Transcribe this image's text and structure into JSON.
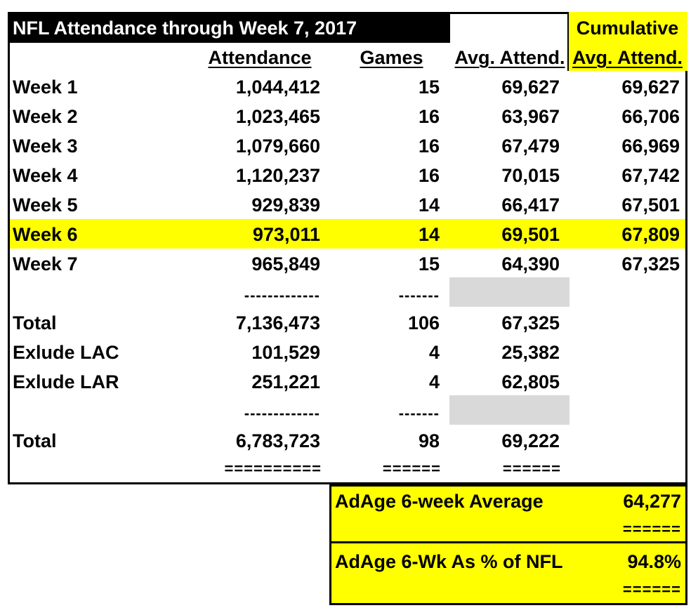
{
  "title": "NFL Attendance through Week 7, 2017",
  "headers": {
    "attendance": "Attendance",
    "games": "Games",
    "avg": "Avg. Attend.",
    "cum_line1": "Cumulative",
    "cum_line2": "Avg. Attend."
  },
  "rows": [
    {
      "label": "Week 1",
      "attendance": "1,044,412",
      "games": "15",
      "avg": "69,627",
      "cum": "69,627"
    },
    {
      "label": "Week 2",
      "attendance": "1,023,465",
      "games": "16",
      "avg": "63,967",
      "cum": "66,706"
    },
    {
      "label": "Week 3",
      "attendance": "1,079,660",
      "games": "16",
      "avg": "67,479",
      "cum": "66,969"
    },
    {
      "label": "Week 4",
      "attendance": "1,120,237",
      "games": "16",
      "avg": "70,015",
      "cum": "67,742"
    },
    {
      "label": "Week 5",
      "attendance": "929,839",
      "games": "14",
      "avg": "66,417",
      "cum": "67,501"
    },
    {
      "label": "Week 6",
      "attendance": "973,011",
      "games": "14",
      "avg": "69,501",
      "cum": "67,809"
    },
    {
      "label": "Week 7",
      "attendance": "965,849",
      "games": "15",
      "avg": "64,390",
      "cum": "67,325"
    }
  ],
  "separator1": {
    "attendance": "-------------",
    "games": "-------"
  },
  "total1": {
    "label": "Total",
    "attendance": "7,136,473",
    "games": "106",
    "avg": "67,325"
  },
  "exclude_lac": {
    "label": "Exlude LAC",
    "attendance": "101,529",
    "games": "4",
    "avg": "25,382"
  },
  "exclude_lar": {
    "label": "Exlude LAR",
    "attendance": "251,221",
    "games": "4",
    "avg": "62,805"
  },
  "separator2": {
    "attendance": "-------------",
    "games": "-------"
  },
  "total2": {
    "label": "Total",
    "attendance": "6,783,723",
    "games": "98",
    "avg": "69,222"
  },
  "double_rule": {
    "attendance": "==========",
    "games": "======",
    "avg": "======"
  },
  "adage": {
    "avg_label": "AdAge 6-week Average",
    "avg_value": "64,277",
    "avg_rule": "======",
    "pct_label": "AdAge 6-Wk As % of NFL",
    "pct_value": "94.8%",
    "pct_rule": "======"
  },
  "colors": {
    "highlight": "#ffff00",
    "title_bg": "#000000",
    "title_fg": "#ffffff",
    "gray_fill": "#d9d9d9"
  }
}
